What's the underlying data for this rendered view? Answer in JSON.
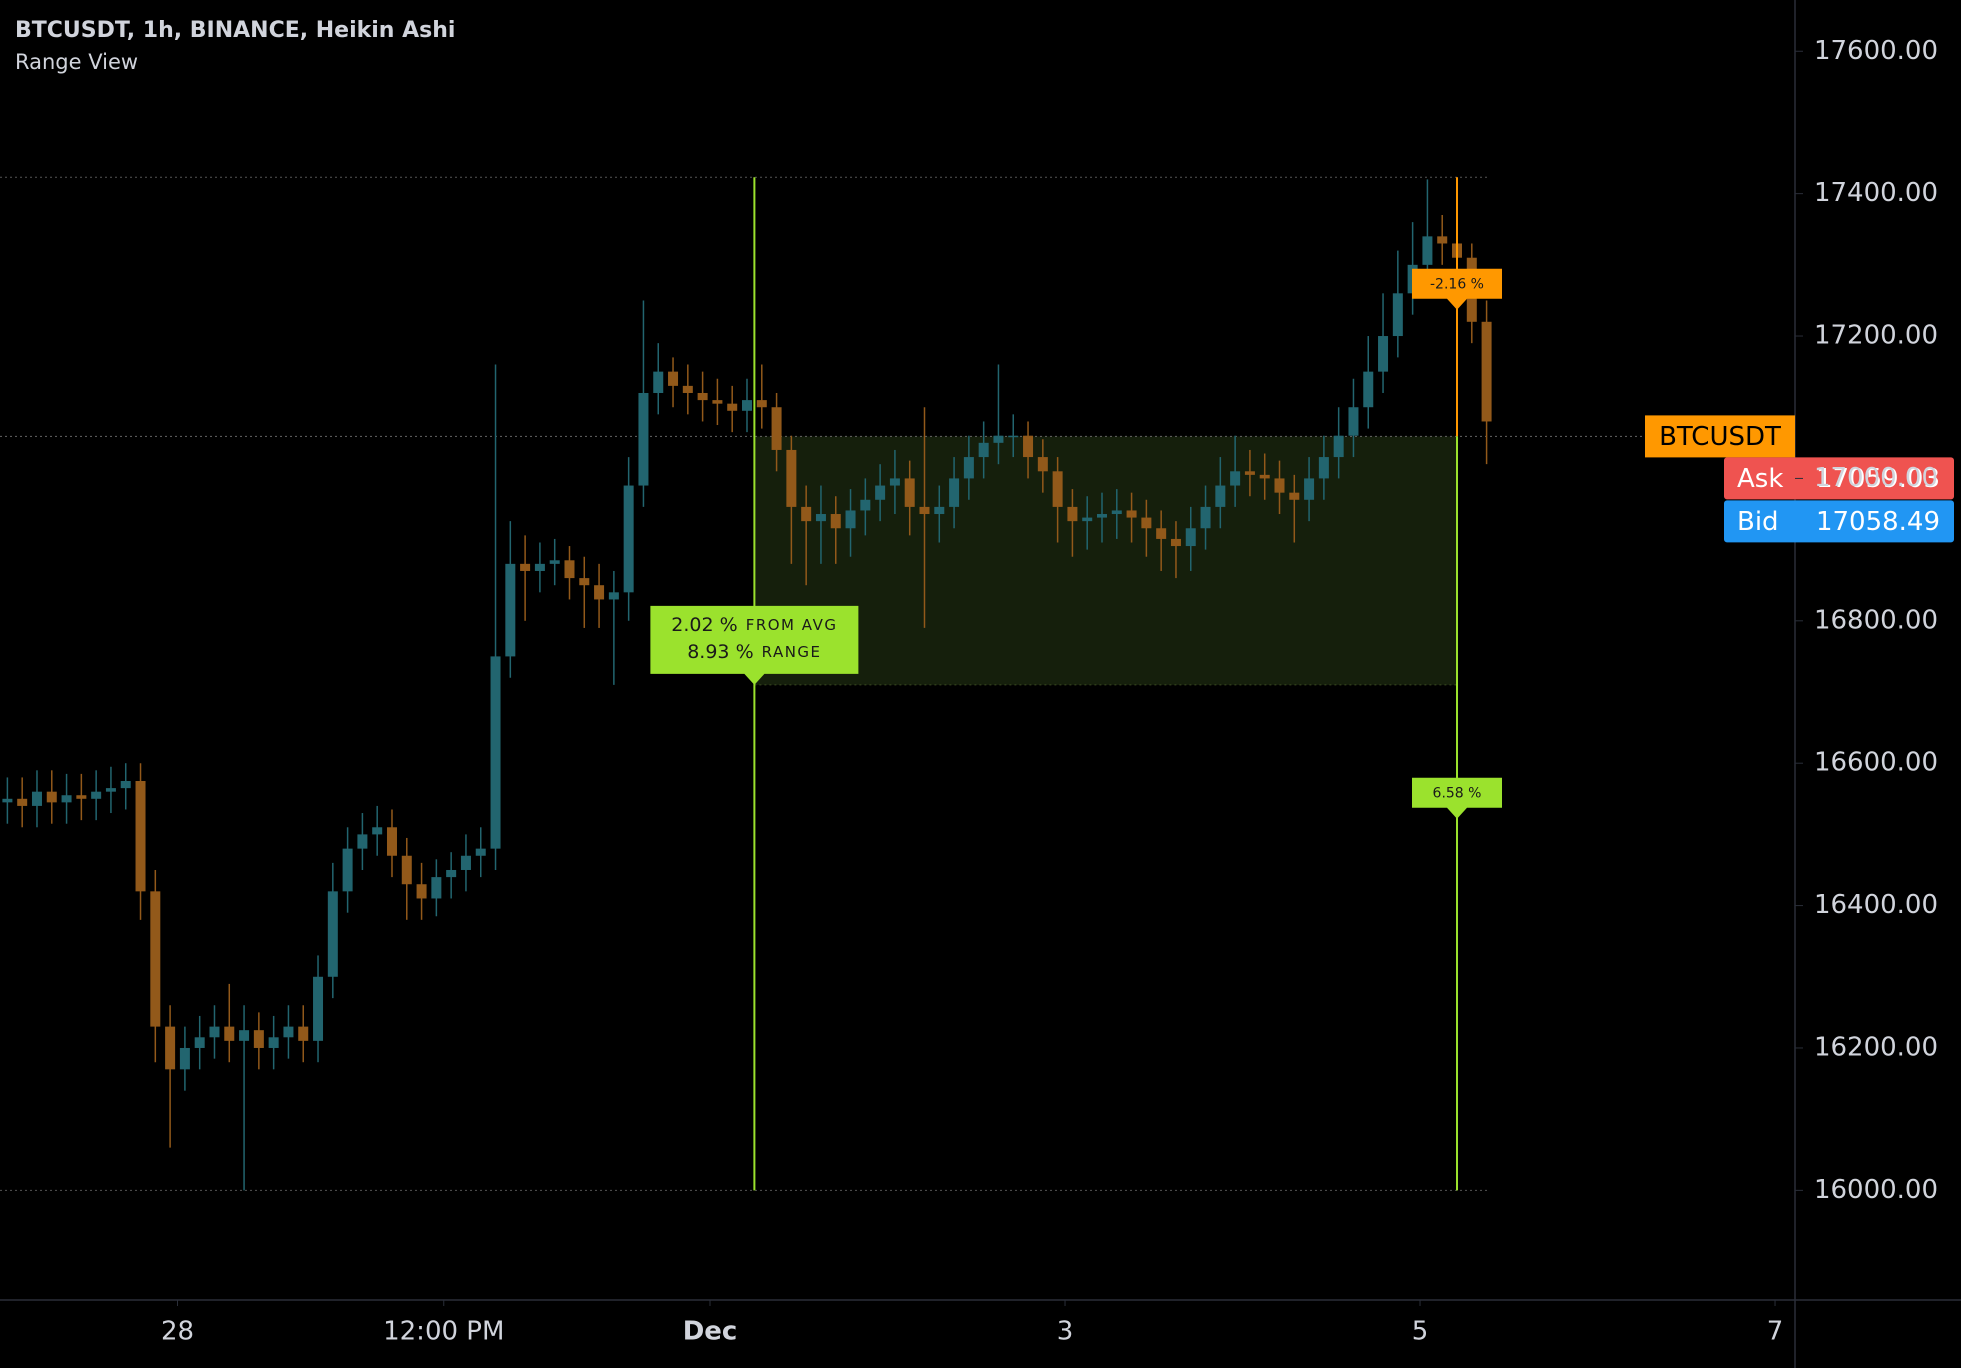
{
  "chart_data": {
    "type": "candlestick",
    "title": "BTCUSDT, 1h, BINANCE, Heikin Ashi",
    "subtitle": "Range View",
    "up_color": "#22656f",
    "down_color": "#92591a",
    "x": [
      0,
      2,
      4,
      6,
      8,
      10,
      12,
      14,
      16,
      18,
      20,
      22,
      24,
      26,
      28,
      30,
      32,
      34,
      36,
      38,
      40,
      42,
      44,
      46,
      48,
      50,
      52,
      54,
      56,
      58,
      60,
      62,
      64,
      66,
      68,
      70,
      72,
      74,
      76,
      78,
      80,
      82,
      84,
      86,
      88,
      90,
      92,
      94,
      96,
      98,
      100,
      102,
      104,
      106,
      108,
      110,
      112,
      114,
      116,
      118,
      120,
      122,
      124,
      126,
      128,
      130,
      132,
      134,
      136,
      138,
      140,
      142,
      144,
      146,
      148,
      150,
      152,
      154,
      156,
      158,
      160,
      162,
      164,
      166,
      168,
      170,
      172,
      174,
      176,
      178,
      180,
      182,
      184,
      186,
      188,
      190,
      192,
      194,
      196,
      198,
      200
    ],
    "open": [
      16545,
      16550,
      16540,
      16560,
      16545,
      16555,
      16550,
      16560,
      16565,
      16575,
      16420,
      16230,
      16170,
      16200,
      16215,
      16230,
      16210,
      16225,
      16200,
      16215,
      16230,
      16210,
      16300,
      16420,
      16480,
      16500,
      16510,
      16470,
      16430,
      16410,
      16440,
      16450,
      16470,
      16480,
      16750,
      16880,
      16870,
      16880,
      16885,
      16860,
      16850,
      16830,
      16840,
      16990,
      17120,
      17150,
      17130,
      17120,
      17110,
      17105,
      17095,
      17110,
      17100,
      17040,
      16960,
      16940,
      16950,
      16930,
      16955,
      16970,
      16990,
      17000,
      16960,
      16950,
      16960,
      17000,
      17030,
      17050,
      17060,
      17060,
      17030,
      17010,
      16960,
      16940,
      16945,
      16950,
      16955,
      16945,
      16930,
      16915,
      16905,
      16930,
      16960,
      16990,
      17010,
      17005,
      17000,
      16980,
      16970,
      17000,
      17030,
      17060,
      17100,
      17150,
      17200,
      17260,
      17300,
      17340,
      17330,
      17310,
      17220
    ],
    "high": [
      16580,
      16580,
      16590,
      16590,
      16585,
      16585,
      16590,
      16595,
      16600,
      16600,
      16450,
      16260,
      16230,
      16245,
      16260,
      16290,
      16260,
      16250,
      16245,
      16260,
      16260,
      16330,
      16460,
      16510,
      16530,
      16540,
      16535,
      16495,
      16460,
      16465,
      16475,
      16500,
      16510,
      17160,
      16940,
      16920,
      16910,
      16915,
      16905,
      16890,
      16880,
      16870,
      17030,
      17250,
      17190,
      17170,
      17160,
      17150,
      17140,
      17130,
      17140,
      17160,
      17120,
      17060,
      16990,
      16990,
      16975,
      16985,
      17000,
      17020,
      17040,
      17025,
      17100,
      16990,
      17030,
      17060,
      17080,
      17160,
      17090,
      17080,
      17055,
      17030,
      16985,
      16975,
      16980,
      16985,
      16980,
      16970,
      16955,
      16940,
      16960,
      16990,
      17030,
      17060,
      17040,
      17035,
      17025,
      17005,
      17030,
      17060,
      17100,
      17140,
      17200,
      17260,
      17320,
      17360,
      17420,
      17370,
      17350,
      17330,
      17250
    ],
    "low": [
      16515,
      16510,
      16510,
      16515,
      16515,
      16520,
      16520,
      16530,
      16535,
      16380,
      16180,
      16060,
      16140,
      16170,
      16185,
      16180,
      16000,
      16170,
      16170,
      16185,
      16180,
      16180,
      16270,
      16390,
      16450,
      16470,
      16440,
      16380,
      16380,
      16385,
      16410,
      16420,
      16440,
      16450,
      16720,
      16800,
      16840,
      16850,
      16830,
      16790,
      16790,
      16710,
      16800,
      16960,
      17090,
      17100,
      17090,
      17080,
      17075,
      17065,
      17065,
      17070,
      17010,
      16880,
      16850,
      16880,
      16880,
      16890,
      16920,
      16940,
      16950,
      16920,
      16790,
      16910,
      16930,
      16970,
      17000,
      17020,
      17030,
      17000,
      16980,
      16910,
      16890,
      16900,
      16910,
      16915,
      16910,
      16890,
      16870,
      16860,
      16870,
      16900,
      16930,
      16960,
      16975,
      16970,
      16950,
      16910,
      16940,
      16970,
      17000,
      17030,
      17070,
      17120,
      17170,
      17230,
      17270,
      17300,
      17280,
      17190,
      17020
    ],
    "close": [
      16550,
      16540,
      16560,
      16545,
      16555,
      16550,
      16560,
      16565,
      16575,
      16420,
      16230,
      16170,
      16200,
      16215,
      16230,
      16210,
      16225,
      16200,
      16215,
      16230,
      16210,
      16300,
      16420,
      16480,
      16500,
      16510,
      16470,
      16430,
      16410,
      16440,
      16450,
      16470,
      16480,
      16750,
      16880,
      16870,
      16880,
      16885,
      16860,
      16850,
      16830,
      16840,
      16990,
      17120,
      17150,
      17130,
      17120,
      17110,
      17105,
      17095,
      17110,
      17100,
      17040,
      16960,
      16940,
      16950,
      16930,
      16955,
      16970,
      16990,
      17000,
      16960,
      16950,
      16960,
      17000,
      17030,
      17050,
      17060,
      17060,
      17030,
      17010,
      16960,
      16940,
      16945,
      16950,
      16955,
      16945,
      16930,
      16915,
      16905,
      16930,
      16960,
      16990,
      17010,
      17005,
      17000,
      16980,
      16970,
      17000,
      17030,
      17060,
      17100,
      17150,
      17200,
      17260,
      17300,
      17340,
      17330,
      17310,
      17220,
      17080
    ],
    "xlim": [
      0,
      242.7
    ],
    "ylim": [
      15846,
      17672
    ],
    "xticks": [
      {
        "value": 24,
        "label": "28"
      },
      {
        "value": 60,
        "label": "12:00 PM"
      },
      {
        "value": 96,
        "label": "Dec"
      },
      {
        "value": 144,
        "label": "3"
      },
      {
        "value": 192,
        "label": "5"
      },
      {
        "value": 240,
        "label": "7"
      }
    ],
    "yticks": [
      {
        "value": 16000,
        "label": "16000.00"
      },
      {
        "value": 16200,
        "label": "16200.00"
      },
      {
        "value": 16400,
        "label": "16400.00"
      },
      {
        "value": 16600,
        "label": "16600.00"
      },
      {
        "value": 16800,
        "label": "16800.00"
      },
      {
        "value": 17000,
        "label": "17000.00"
      },
      {
        "value": 17200,
        "label": "17200.00"
      },
      {
        "value": 17400,
        "label": "17400.00"
      },
      {
        "value": 17600,
        "label": "17600.00"
      }
    ],
    "range_view": {
      "start": 102,
      "end": 197,
      "high": 17423,
      "low": 16000,
      "box_low": 16710,
      "color": "#9be22d",
      "end_color": "#ff9800",
      "box_color": "#151f0c",
      "labels": [
        {
          "x": 102,
          "y": 16710,
          "color": "#9be22d",
          "lines": [
            {
              "value": "2.02 %",
              "unit": "FROM AVG"
            },
            {
              "value": "8.93 %",
              "unit": "RANGE"
            }
          ]
        },
        {
          "x": 197,
          "y": 17237,
          "color": "#ff9800",
          "lines": [
            {
              "value": "-2.16 %"
            }
          ]
        },
        {
          "x": 197,
          "y": 16522,
          "color": "#9be22d",
          "lines": [
            {
              "value": "6.58 %"
            }
          ]
        }
      ]
    },
    "price_tags": {
      "symbol": "BTCUSDT",
      "symbol_color": "#ff9800",
      "ask_label": "Ask",
      "ask": 17059.03,
      "ask_color": "#ef5350",
      "bid_label": "Bid",
      "bid": 17058.49,
      "bid_color": "#2196f3"
    }
  }
}
